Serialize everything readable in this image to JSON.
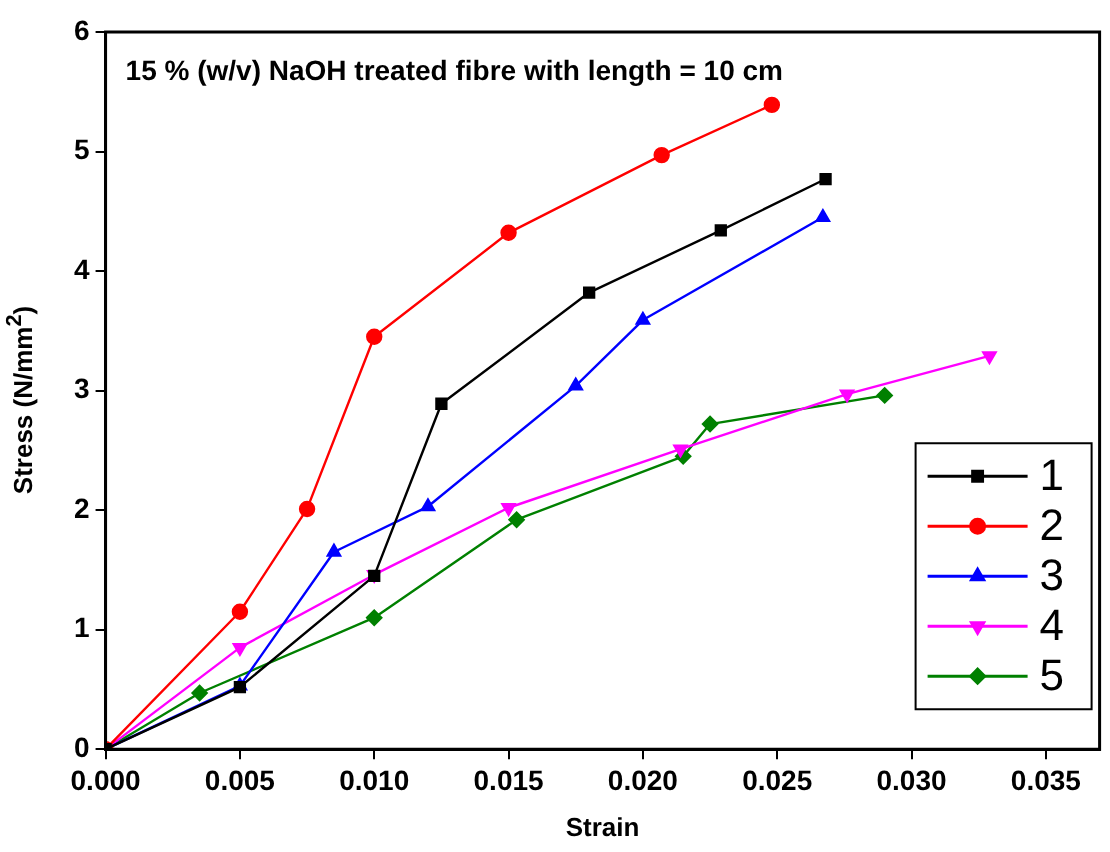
{
  "chart_data": {
    "type": "line",
    "title": "15 % (w/v) NaOH treated fibre with length = 10 cm",
    "xlabel": "Strain",
    "ylabel": "Stress (N/mm$^{2}$)",
    "xlim": [
      0,
      0.037
    ],
    "xticks": [
      {
        "value": 0,
        "label": "0.000"
      },
      {
        "value": 0.005,
        "label": "0.005"
      },
      {
        "value": 0.01,
        "label": "0.010"
      },
      {
        "value": 0.015,
        "label": "0.015"
      },
      {
        "value": 0.02,
        "label": "0.020"
      },
      {
        "value": 0.025,
        "label": "0.025"
      },
      {
        "value": 0.03,
        "label": "0.030"
      },
      {
        "value": 0.035,
        "label": "0.035"
      }
    ],
    "ylim": [
      0,
      6
    ],
    "yticks": [
      0,
      1,
      2,
      3,
      4,
      5,
      6
    ],
    "grid": false,
    "legend": "bottom right",
    "line_style": "solid",
    "series": [
      {
        "name": "1",
        "color": "#000000",
        "marker": "square",
        "x": [
          0,
          0.005,
          0.01,
          0.0125,
          0.018,
          0.0229,
          0.0268
        ],
        "values": [
          0,
          0.52,
          1.45,
          2.89,
          3.82,
          4.34,
          4.77
        ]
      },
      {
        "name": "2",
        "color": "#ff0000",
        "marker": "circle",
        "x": [
          0,
          0.005,
          0.0075,
          0.01,
          0.015,
          0.0207,
          0.0248
        ],
        "values": [
          0,
          1.15,
          2.01,
          3.45,
          4.32,
          4.97,
          5.39
        ]
      },
      {
        "name": "3",
        "color": "#0000ff",
        "marker": "triangle",
        "x": [
          0,
          0.005,
          0.0085,
          0.012,
          0.0175,
          0.02,
          0.0267
        ],
        "values": [
          0,
          0.53,
          1.65,
          2.03,
          3.04,
          3.59,
          4.45
        ]
      },
      {
        "name": "4",
        "color": "#ff00ff",
        "marker": "triangle-down",
        "x": [
          0,
          0.005,
          0.01,
          0.015,
          0.0214,
          0.0276,
          0.0329
        ],
        "values": [
          0,
          0.85,
          1.46,
          2.02,
          2.51,
          2.97,
          3.29
        ]
      },
      {
        "name": "5",
        "color": "#008000",
        "marker": "diamond",
        "x": [
          0,
          0.0035,
          0.01,
          0.0153,
          0.0215,
          0.0225,
          0.029
        ],
        "values": [
          0,
          0.47,
          1.1,
          1.92,
          2.45,
          2.72,
          2.96
        ]
      }
    ]
  }
}
